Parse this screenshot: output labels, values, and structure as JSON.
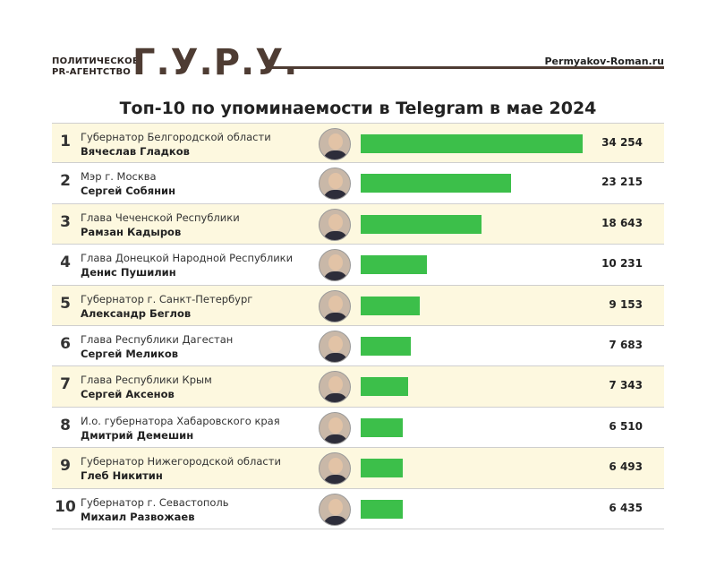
{
  "header": {
    "logo_small_line1": "ПОЛИТИЧЕСКОЕ",
    "logo_small_line2": "PR-АГЕНТСТВО",
    "logo_big": "Г.У.Р.У.",
    "site": "Permyakov-Roman.ru"
  },
  "chart_data": {
    "type": "bar",
    "title": "Топ-10 по упоминаемости в Telegram в мае 2024",
    "categories": [
      "1",
      "2",
      "3",
      "4",
      "5",
      "6",
      "7",
      "8",
      "9",
      "10"
    ],
    "positions": [
      "Губернатор Белгородской области",
      "Мэр г. Москва",
      "Глава Чеченской Республики",
      "Глава Донецкой Народной Республики",
      "Губернатор г. Санкт-Петербург",
      "Глава Республики Дагестан",
      "Глава Республики Крым",
      "И.о. губернатора Хабаровского края",
      "Губернатор Нижегородской области",
      "Губернатор г. Севастополь"
    ],
    "names": [
      "Вячеслав Гладков",
      "Сергей Собянин",
      "Рамзан Кадыров",
      "Денис Пушилин",
      "Александр Беглов",
      "Сергей Меликов",
      "Сергей Аксенов",
      "Дмитрий Демешин",
      "Глеб Никитин",
      "Михаил Развожаев"
    ],
    "values": [
      34254,
      23215,
      18643,
      10231,
      9153,
      7683,
      7343,
      6510,
      6493,
      6435
    ],
    "value_labels": [
      "34 254",
      "23 215",
      "18 643",
      "10 231",
      "9 153",
      "7 683",
      "7 343",
      "6 510",
      "6 493",
      "6 435"
    ],
    "bar_color": "#3cbf4a",
    "row_highlight_color": "#fdf8df"
  }
}
